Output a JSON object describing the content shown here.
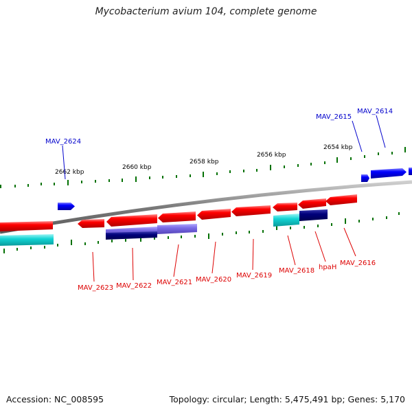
{
  "title": "Mycobacterium avium 104, complete genome",
  "footer": {
    "accession": "Accession: NC_008595",
    "summary": "Topology: circular; Length: 5,475,491 bp; Genes: 5,170"
  },
  "colors": {
    "forward_gene": "#0000ff",
    "reverse_gene": "#ff0000",
    "feature_cyan": "#00c8d0",
    "feature_navy": "#000080",
    "feature_slate": "#6a5acd",
    "tick": "#007000",
    "backbone": "#808080"
  },
  "scale": {
    "unit": "kbp",
    "labels": [
      {
        "kbp": 2662,
        "label": "2662 kbp"
      },
      {
        "kbp": 2660,
        "label": "2660 kbp"
      },
      {
        "kbp": 2658,
        "label": "2658 kbp"
      },
      {
        "kbp": 2656,
        "label": "2656 kbp"
      },
      {
        "kbp": 2654,
        "label": "2654 kbp"
      }
    ]
  },
  "forward_genes": [
    {
      "name": "MAV_2624",
      "labeled": true
    },
    {
      "name": "MAV_2615",
      "labeled": true
    },
    {
      "name": "MAV_2614",
      "labeled": true
    }
  ],
  "reverse_genes": [
    {
      "name": "MAV_2623"
    },
    {
      "name": "MAV_2622"
    },
    {
      "name": "MAV_2621"
    },
    {
      "name": "MAV_2620"
    },
    {
      "name": "MAV_2619"
    },
    {
      "name": "MAV_2618"
    },
    {
      "name": "hpaH"
    },
    {
      "name": "MAV_2616"
    }
  ]
}
